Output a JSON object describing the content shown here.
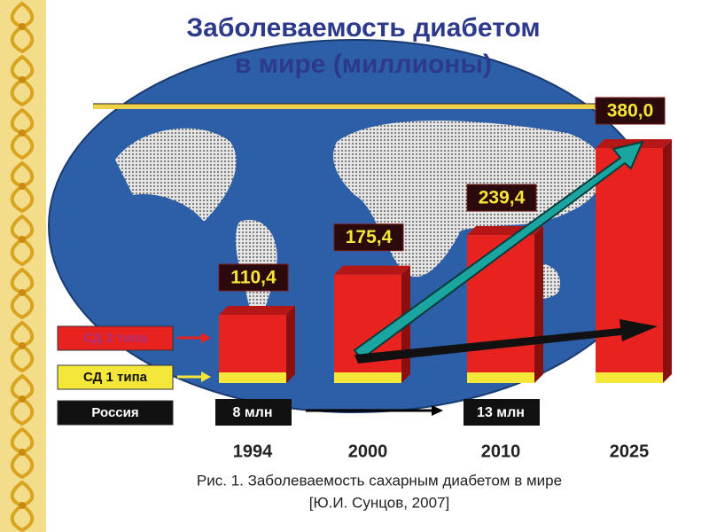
{
  "chart_data": {
    "type": "bar",
    "title": "Заболеваемость диабетом",
    "subtitle": "в мире (миллионы)",
    "categories": [
      "1994",
      "2000",
      "2010",
      "2025"
    ],
    "values": [
      110.4,
      175.4,
      239.4,
      380.0
    ],
    "value_labels": [
      "110,4",
      "175,4",
      "239,4",
      "380,0"
    ],
    "color": "#e8231f",
    "legend": [
      "СД 2 типа",
      "СД 1 типа",
      "Россия"
    ],
    "russia": [
      "8 млн",
      null,
      "13 млн",
      null
    ],
    "caption": [
      "Рис. 1. Заболеваемость сахарным диабетом в мире",
      "[Ю.И. Сунцов, 2007]"
    ]
  }
}
